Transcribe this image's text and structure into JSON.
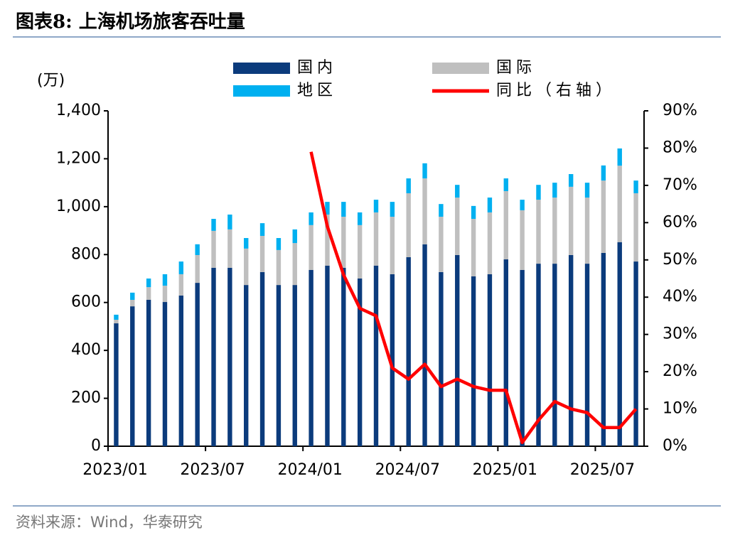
{
  "chart_data": {
    "type": "bar",
    "title": "图表8:  上海机场旅客吞吐量",
    "source": "资料来源：Wind，华泰研究",
    "ylabel": "(万)",
    "categories": [
      "2023/01",
      null,
      null,
      null,
      null,
      null,
      "2023/07",
      null,
      null,
      null,
      null,
      null,
      "2024/01",
      null,
      null,
      null,
      null,
      null,
      "2024/07",
      null,
      null,
      null,
      null,
      null,
      "2025/01",
      null,
      null,
      null,
      null,
      null,
      "2025/07",
      null,
      null
    ],
    "series": [
      {
        "name": "国内",
        "color": "#0b3b7c",
        "values": [
          513,
          584,
          611,
          602,
          629,
          682,
          745,
          745,
          673,
          727,
          673,
          673,
          736,
          754,
          745,
          700,
          754,
          718,
          789,
          843,
          727,
          798,
          709,
          718,
          780,
          736,
          762,
          762,
          798,
          762,
          807,
          852,
          771
        ]
      },
      {
        "name": "国际",
        "color": "#bfbfbf",
        "values": [
          15,
          27,
          53,
          68,
          89,
          116,
          154,
          160,
          152,
          151,
          146,
          175,
          187,
          213,
          213,
          223,
          222,
          240,
          267,
          275,
          231,
          240,
          240,
          258,
          285,
          249,
          267,
          276,
          285,
          276,
          302,
          319,
          285
        ]
      },
      {
        "name": "地区",
        "color": "#00b0f0",
        "values": [
          21,
          30,
          36,
          48,
          53,
          45,
          50,
          62,
          44,
          53,
          50,
          57,
          53,
          53,
          62,
          53,
          53,
          62,
          62,
          63,
          53,
          53,
          54,
          62,
          53,
          44,
          62,
          62,
          53,
          62,
          63,
          72,
          53
        ]
      },
      {
        "name": "同比（右轴）",
        "type": "line",
        "axis": "y2",
        "color": "#ff0000",
        "values": [
          null,
          null,
          null,
          null,
          null,
          null,
          null,
          null,
          null,
          null,
          null,
          null,
          79,
          59,
          46,
          37,
          35,
          21,
          18,
          22,
          16,
          18,
          16,
          15,
          15,
          1,
          7,
          12,
          10,
          9,
          5,
          5,
          10
        ]
      }
    ],
    "ylim": [
      0,
      1400
    ],
    "yticks": [
      0,
      200,
      400,
      600,
      800,
      {
        "value": 1000,
        "label": "1,000"
      },
      {
        "value": 1200,
        "label": "1,200"
      },
      {
        "value": 1400,
        "label": "1,400"
      }
    ],
    "y2lim": [
      0,
      90
    ],
    "y2ticks": [
      {
        "value": 0,
        "label": "0%"
      },
      {
        "value": 10,
        "label": "10%"
      },
      {
        "value": 20,
        "label": "20%"
      },
      {
        "value": 30,
        "label": "30%"
      },
      {
        "value": 40,
        "label": "40%"
      },
      {
        "value": 50,
        "label": "50%"
      },
      {
        "value": 60,
        "label": "60%"
      },
      {
        "value": 70,
        "label": "70%"
      },
      {
        "value": 80,
        "label": "80%"
      },
      {
        "value": 90,
        "label": "90%"
      }
    ],
    "stacked": true,
    "grid": false,
    "legend": "top"
  }
}
